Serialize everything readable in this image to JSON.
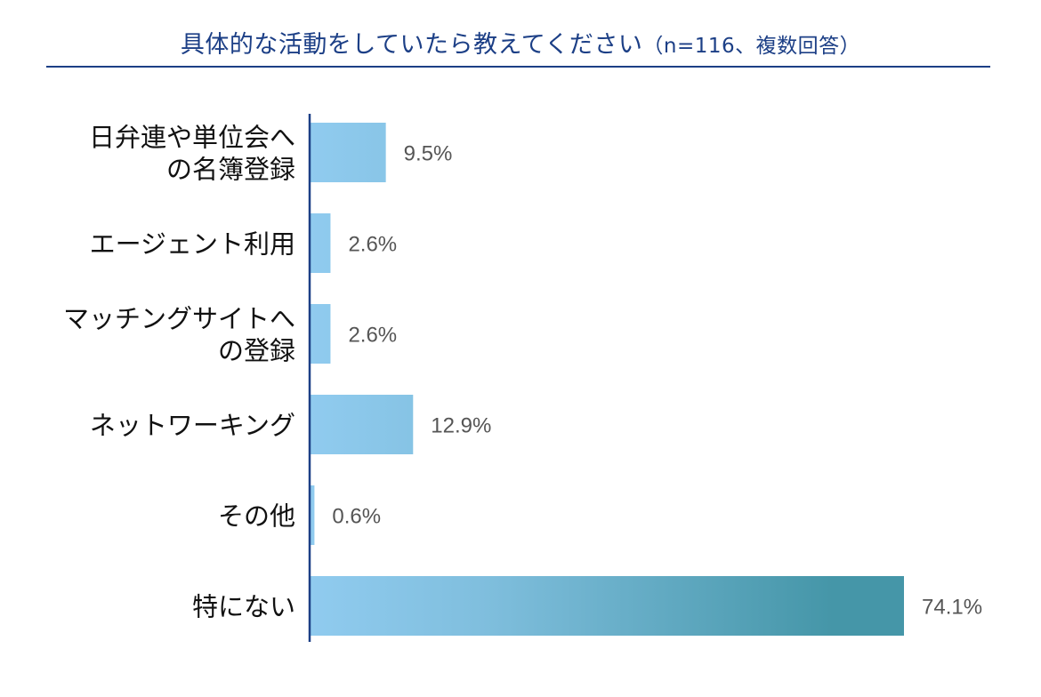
{
  "chart_data": {
    "type": "bar",
    "orientation": "horizontal",
    "title": "具体的な活動をしていたら教えてください",
    "subtitle": "（n=116、複数回答）",
    "categories": [
      [
        "日弁連や単位会へ",
        "の名簿登録"
      ],
      [
        "エージェント利用"
      ],
      [
        "マッチングサイトへ",
        "の登録"
      ],
      [
        "ネットワーキング"
      ],
      [
        "その他"
      ],
      [
        "特にない"
      ]
    ],
    "values": [
      9.5,
      2.6,
      2.6,
      12.9,
      0.6,
      74.1
    ],
    "value_labels": [
      "9.5%",
      "2.6%",
      "2.6%",
      "12.9%",
      "0.6%",
      "74.1%"
    ],
    "unit": "%",
    "xlim": [
      0,
      74.1
    ],
    "grid": false,
    "colors": {
      "title": "#1c3f86",
      "axis": "#1c3f86",
      "bar_start": "#90cbef",
      "bar_end": "#4596a8",
      "value_label": "#555555",
      "category_label": "#111111"
    }
  }
}
